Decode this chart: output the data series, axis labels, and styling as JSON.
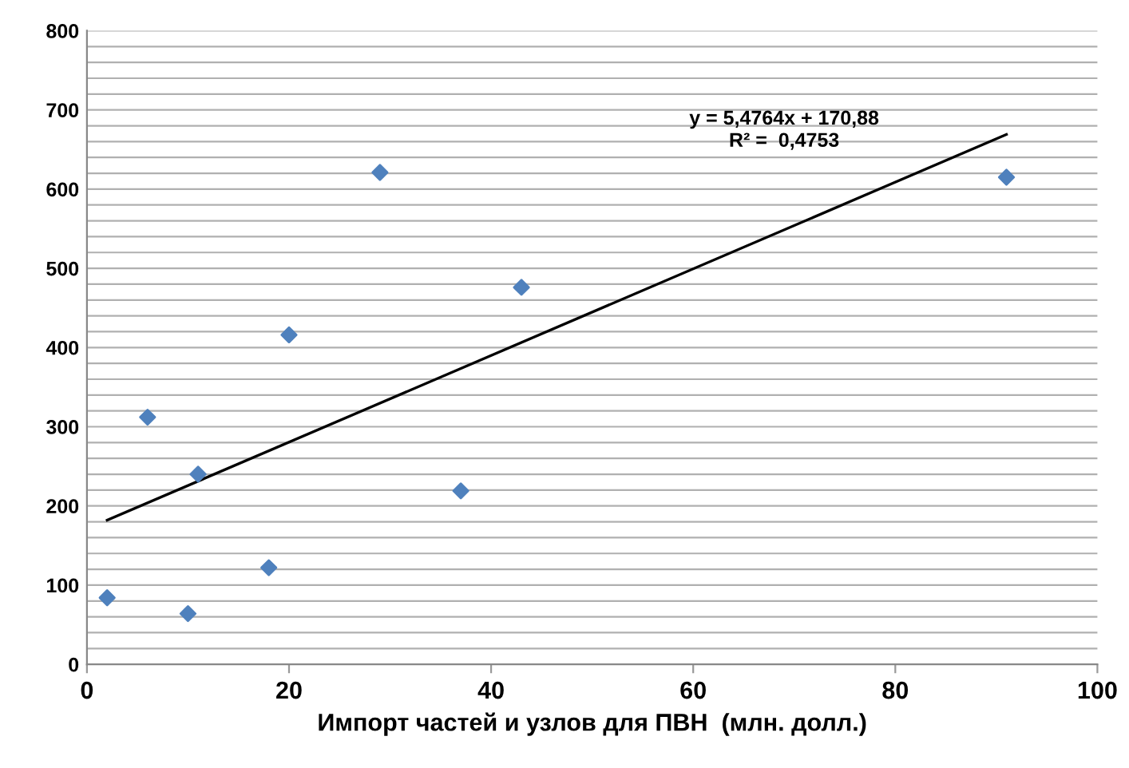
{
  "chart_data": {
    "type": "scatter",
    "xlabel": "Импорт частей и узлов для ПВН  (млн. долл.)",
    "series": [
      {
        "color": "#4f81bd",
        "marker": "diamond",
        "x": [
          2,
          6,
          10,
          11,
          18,
          20,
          29,
          37,
          43,
          91
        ],
        "values": [
          84,
          312,
          64,
          240,
          122,
          416,
          621,
          219,
          476,
          615
        ]
      },
      {
        "type": "line",
        "color": "#000000",
        "marker": "none",
        "x": [
          2,
          91
        ],
        "values": [
          182,
          669
        ]
      }
    ],
    "annotations": [
      "y = 5,4764x + 170,88",
      "R² =  0,4753"
    ],
    "xlim": [
      0,
      100
    ],
    "xticks": [
      0,
      20,
      40,
      60,
      80,
      100
    ],
    "ylim": [
      0,
      800
    ],
    "yticks": [
      0,
      {
        "value": 20,
        "label": null
      },
      {
        "value": 40,
        "label": null
      },
      {
        "value": 60,
        "label": null
      },
      {
        "value": 80,
        "label": null
      },
      100,
      {
        "value": 120,
        "label": null
      },
      {
        "value": 140,
        "label": null
      },
      {
        "value": 160,
        "label": null
      },
      {
        "value": 180,
        "label": null
      },
      200,
      {
        "value": 220,
        "label": null
      },
      {
        "value": 240,
        "label": null
      },
      {
        "value": 260,
        "label": null
      },
      {
        "value": 280,
        "label": null
      },
      300,
      {
        "value": 320,
        "label": null
      },
      {
        "value": 340,
        "label": null
      },
      {
        "value": 360,
        "label": null
      },
      {
        "value": 380,
        "label": null
      },
      400,
      {
        "value": 420,
        "label": null
      },
      {
        "value": 440,
        "label": null
      },
      {
        "value": 460,
        "label": null
      },
      {
        "value": 480,
        "label": null
      },
      500,
      {
        "value": 520,
        "label": null
      },
      {
        "value": 540,
        "label": null
      },
      {
        "value": 560,
        "label": null
      },
      {
        "value": 580,
        "label": null
      },
      600,
      {
        "value": 620,
        "label": null
      },
      {
        "value": 640,
        "label": null
      },
      {
        "value": 660,
        "label": null
      },
      {
        "value": 680,
        "label": null
      },
      700,
      {
        "value": 720,
        "label": null
      },
      {
        "value": 740,
        "label": null
      },
      {
        "value": 760,
        "label": null
      },
      {
        "value": 780,
        "label": null
      },
      800
    ],
    "grid": "y"
  }
}
